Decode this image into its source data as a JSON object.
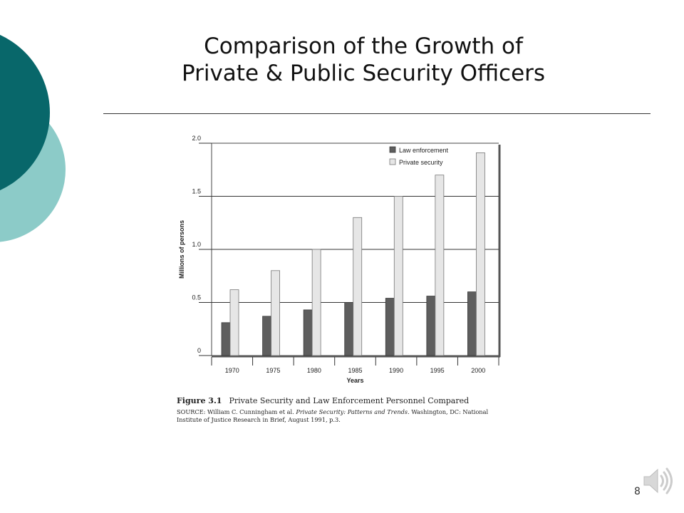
{
  "slide": {
    "title_line1": "Comparison of the Growth of",
    "title_line2": "Private & Public Security Officers",
    "page_number": "8",
    "colors": {
      "dark_teal": "#08676a",
      "light_teal": "#8ccbc8",
      "law_enforcement_bar": "#5e5e5e",
      "private_security_bar": "#e6e6e6"
    }
  },
  "figure": {
    "label": "Figure 3.1",
    "title": "Private Security and Law Enforcement Personnel Compared",
    "source_prefix": "SOURCE: William C. Cunningham et al. ",
    "source_italic": "Private Security: Patterns and Trends",
    "source_suffix": ". Washington, DC: National Institute of Justice Research in Brief, August 1991, p.3."
  },
  "chart_data": {
    "type": "bar",
    "categories": [
      "1970",
      "1975",
      "1980",
      "1985",
      "1990",
      "1995",
      "2000"
    ],
    "series": [
      {
        "name": "Law enforcement",
        "values": [
          0.31,
          0.37,
          0.43,
          0.5,
          0.54,
          0.56,
          0.6
        ]
      },
      {
        "name": "Private security",
        "values": [
          0.62,
          0.8,
          1.0,
          1.3,
          1.5,
          1.7,
          1.91
        ]
      }
    ],
    "xlabel": "Years",
    "ylabel": "Millions of persons",
    "yticks": [
      "0",
      "0.5",
      "1.0",
      "1.5",
      "2.0"
    ],
    "ylim": [
      0,
      2.0
    ],
    "grid": true,
    "legend_position": "top-right"
  }
}
